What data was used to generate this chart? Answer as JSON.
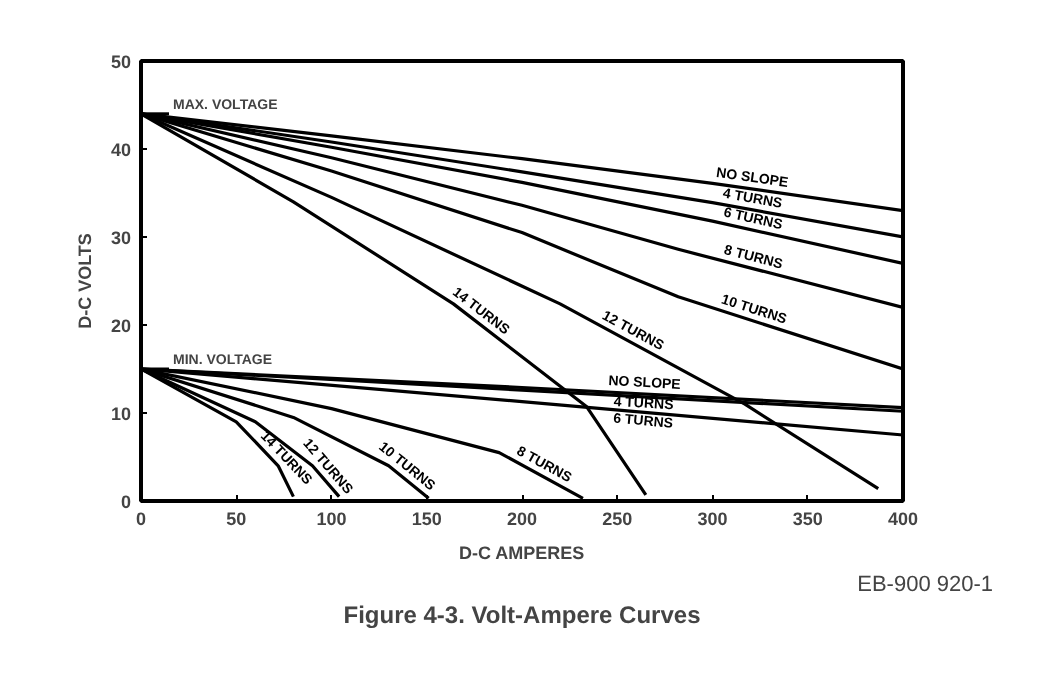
{
  "chart_data": {
    "type": "line",
    "xlabel": "D-C AMPERES",
    "ylabel": "D-C VOLTS",
    "xlim": [
      0,
      400
    ],
    "ylim": [
      0,
      50
    ],
    "xticks": [
      0,
      50,
      100,
      150,
      200,
      250,
      300,
      350,
      400
    ],
    "yticks": [
      0,
      10,
      20,
      30,
      40,
      50
    ],
    "grid": false,
    "marker": "none",
    "line_style": "solid",
    "series": [
      {
        "name": "NO SLOPE",
        "color": "#000000",
        "x": [
          0,
          100,
          200,
          300,
          400
        ],
        "values": [
          44,
          41.5,
          38.9,
          36.1,
          33
        ]
      },
      {
        "name": "4 TURNS",
        "color": "#000000",
        "x": [
          0,
          100,
          200,
          300,
          400
        ],
        "values": [
          44,
          40.8,
          37.4,
          33.9,
          30
        ]
      },
      {
        "name": "6 TURNS",
        "color": "#000000",
        "x": [
          0,
          100,
          200,
          300,
          400
        ],
        "values": [
          44,
          40.2,
          36.2,
          31.8,
          27
        ]
      },
      {
        "name": "8 TURNS",
        "color": "#000000",
        "x": [
          0,
          100,
          200,
          282,
          400
        ],
        "values": [
          44,
          39,
          33.6,
          28.6,
          22
        ]
      },
      {
        "name": "10 TURNS",
        "color": "#000000",
        "x": [
          0,
          100,
          200,
          282,
          400
        ],
        "values": [
          44,
          37.5,
          30.5,
          23.2,
          15
        ]
      },
      {
        "name": "12 TURNS",
        "color": "#000000",
        "x": [
          0,
          100,
          220,
          317,
          387
        ],
        "values": [
          44,
          34.5,
          22.4,
          11,
          1.4
        ]
      },
      {
        "name": "14 TURNS",
        "color": "#000000",
        "x": [
          0,
          80,
          164,
          234,
          265
        ],
        "values": [
          44,
          34,
          22.4,
          10.7,
          0.7
        ]
      },
      {
        "name": "NO SLOPE",
        "color": "#000000",
        "x": [
          0,
          200,
          400
        ],
        "values": [
          15,
          12.9,
          10.6
        ]
      },
      {
        "name": "4 TURNS",
        "color": "#000000",
        "x": [
          0,
          200,
          400
        ],
        "values": [
          15,
          12.6,
          10.2
        ]
      },
      {
        "name": "6 TURNS",
        "color": "#000000",
        "x": [
          0,
          200,
          400
        ],
        "values": [
          15,
          11.3,
          7.5
        ]
      },
      {
        "name": "8 TURNS",
        "color": "#000000",
        "x": [
          0,
          100,
          188,
          232
        ],
        "values": [
          15,
          10.5,
          5.5,
          0.3
        ]
      },
      {
        "name": "10 TURNS",
        "color": "#000000",
        "x": [
          0,
          80,
          130,
          151
        ],
        "values": [
          15,
          9.5,
          4,
          0.3
        ]
      },
      {
        "name": "12 TURNS",
        "color": "#000000",
        "x": [
          0,
          60,
          90,
          104
        ],
        "values": [
          15,
          9,
          4,
          0.5
        ]
      },
      {
        "name": "14 TURNS",
        "color": "#000000",
        "x": [
          0,
          50,
          72,
          80
        ],
        "values": [
          15,
          9,
          4,
          0.5
        ]
      }
    ],
    "annotations": [
      {
        "text": "MAX. VOLTAGE",
        "x": 0,
        "y": 44
      },
      {
        "text": "MIN. VOLTAGE",
        "x": 0,
        "y": 15
      },
      "EB-900 920-1",
      "Figure 4-3. Volt-Ampere Curves"
    ]
  }
}
